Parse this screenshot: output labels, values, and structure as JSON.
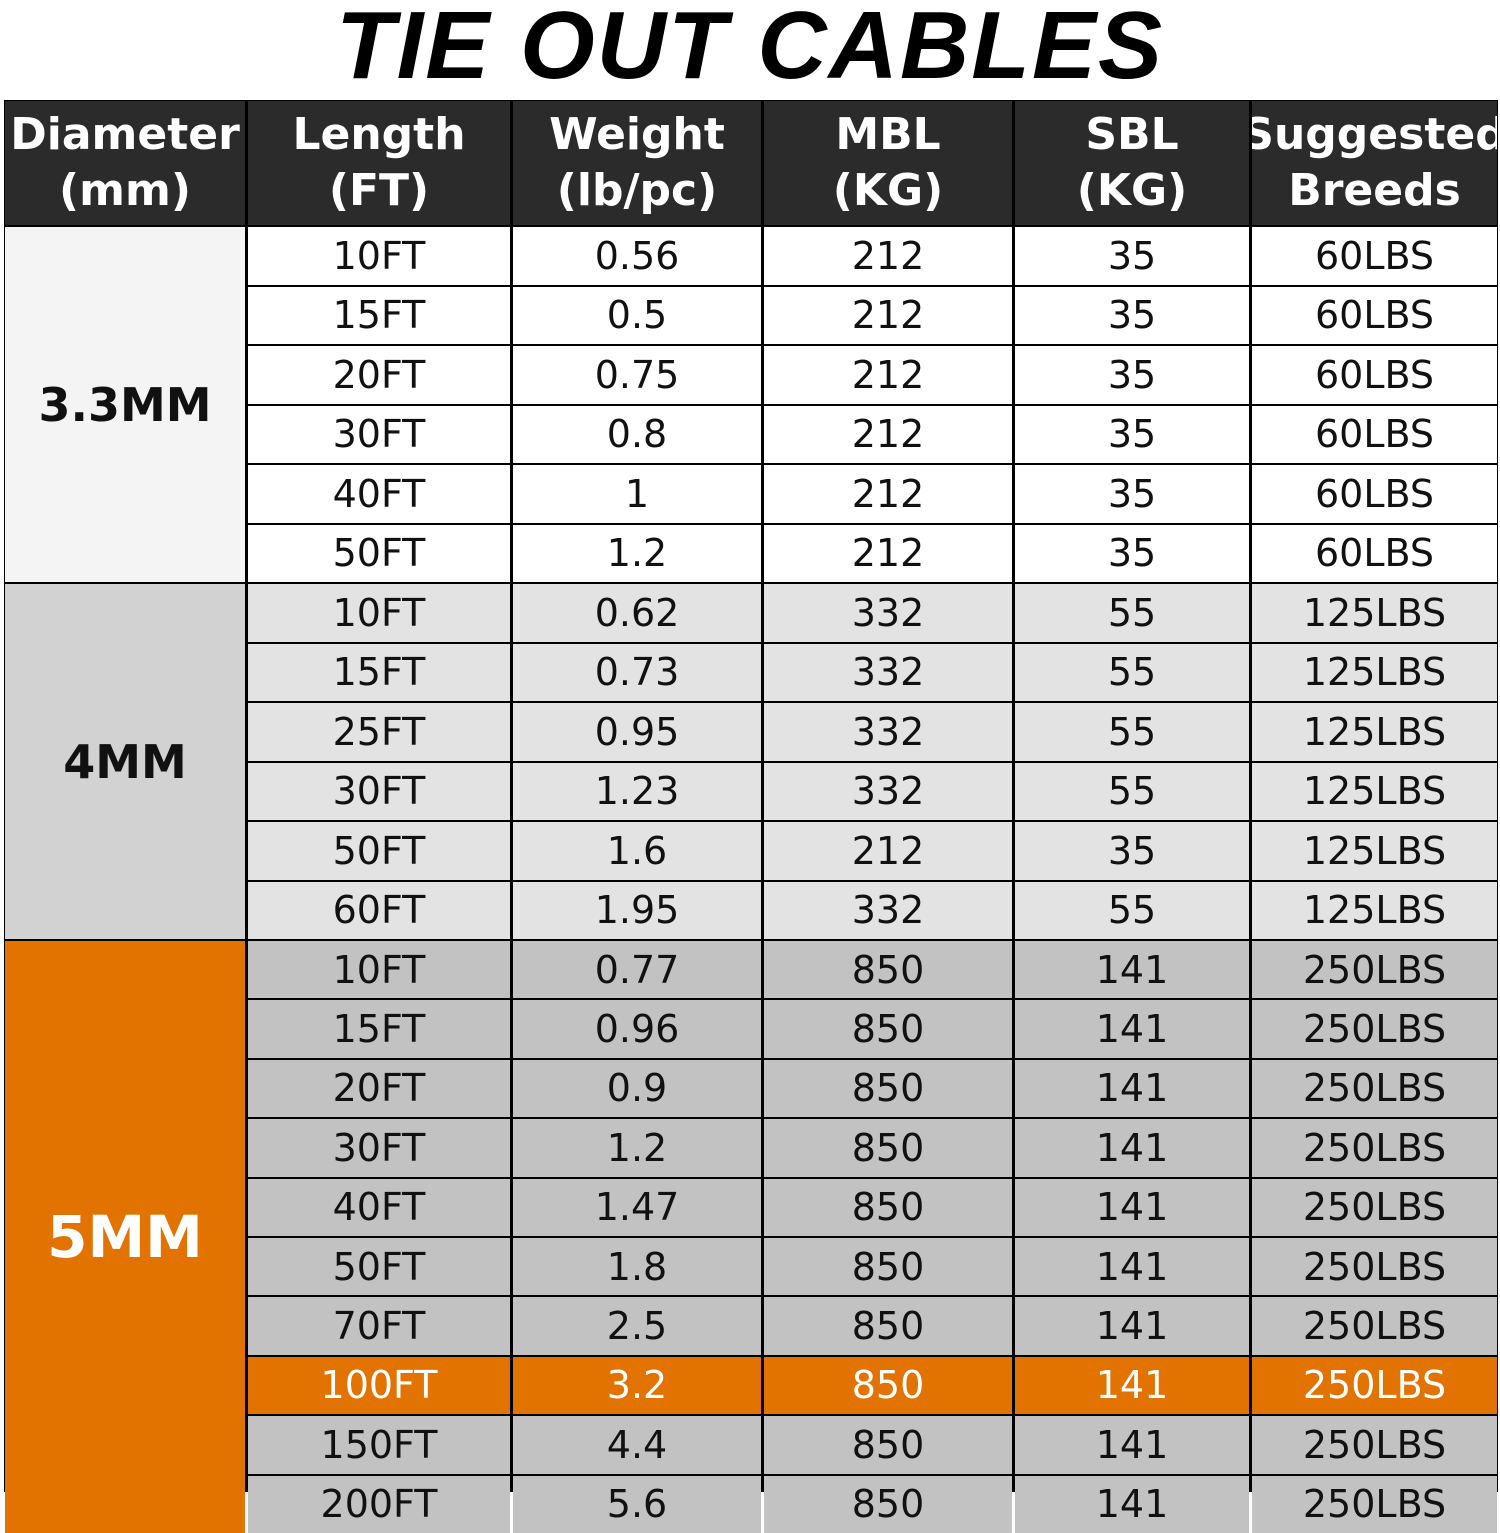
{
  "title": "TIE OUT CABLES",
  "headers": [
    {
      "line1": "Diameter",
      "line2": "(mm)"
    },
    {
      "line1": "Length",
      "line2": "(FT)"
    },
    {
      "line1": "Weight",
      "line2": "(lb/pc)"
    },
    {
      "line1": "MBL",
      "line2": "(KG)"
    },
    {
      "line1": "SBL",
      "line2": "(KG)"
    },
    {
      "line1": "Suggested",
      "line2": "Breeds"
    }
  ],
  "groups": [
    {
      "diameter": "3.3MM",
      "rows": [
        [
          "10FT",
          "0.56",
          "212",
          "35",
          "60LBS"
        ],
        [
          "15FT",
          "0.5",
          "212",
          "35",
          "60LBS"
        ],
        [
          "20FT",
          "0.75",
          "212",
          "35",
          "60LBS"
        ],
        [
          "30FT",
          "0.8",
          "212",
          "35",
          "60LBS"
        ],
        [
          "40FT",
          "1",
          "212",
          "35",
          "60LBS"
        ],
        [
          "50FT",
          "1.2",
          "212",
          "35",
          "60LBS"
        ]
      ]
    },
    {
      "diameter": "4MM",
      "rows": [
        [
          "10FT",
          "0.62",
          "332",
          "55",
          "125LBS"
        ],
        [
          "15FT",
          "0.73",
          "332",
          "55",
          "125LBS"
        ],
        [
          "25FT",
          "0.95",
          "332",
          "55",
          "125LBS"
        ],
        [
          "30FT",
          "1.23",
          "332",
          "55",
          "125LBS"
        ],
        [
          "50FT",
          "1.6",
          "212",
          "35",
          "125LBS"
        ],
        [
          "60FT",
          "1.95",
          "332",
          "55",
          "125LBS"
        ]
      ]
    },
    {
      "diameter": "5MM",
      "highlight_row": 7,
      "rows": [
        [
          "10FT",
          "0.77",
          "850",
          "141",
          "250LBS"
        ],
        [
          "15FT",
          "0.96",
          "850",
          "141",
          "250LBS"
        ],
        [
          "20FT",
          "0.9",
          "850",
          "141",
          "250LBS"
        ],
        [
          "30FT",
          "1.2",
          "850",
          "141",
          "250LBS"
        ],
        [
          "40FT",
          "1.47",
          "850",
          "141",
          "250LBS"
        ],
        [
          "50FT",
          "1.8",
          "850",
          "141",
          "250LBS"
        ],
        [
          "70FT",
          "2.5",
          "850",
          "141",
          "250LBS"
        ],
        [
          "100FT",
          "3.2",
          "850",
          "141",
          "250LBS"
        ],
        [
          "150FT",
          "4.4",
          "850",
          "141",
          "250LBS"
        ],
        [
          "200FT",
          "5.6",
          "850",
          "141",
          "250LBS"
        ]
      ]
    }
  ],
  "colors": {
    "header_bg": "#2b2b2b",
    "accent_orange": "#e37300",
    "group1_bg": "#ffffff",
    "group2_bg": "#e3e3e3",
    "group3_bg": "#c2c2c2"
  }
}
